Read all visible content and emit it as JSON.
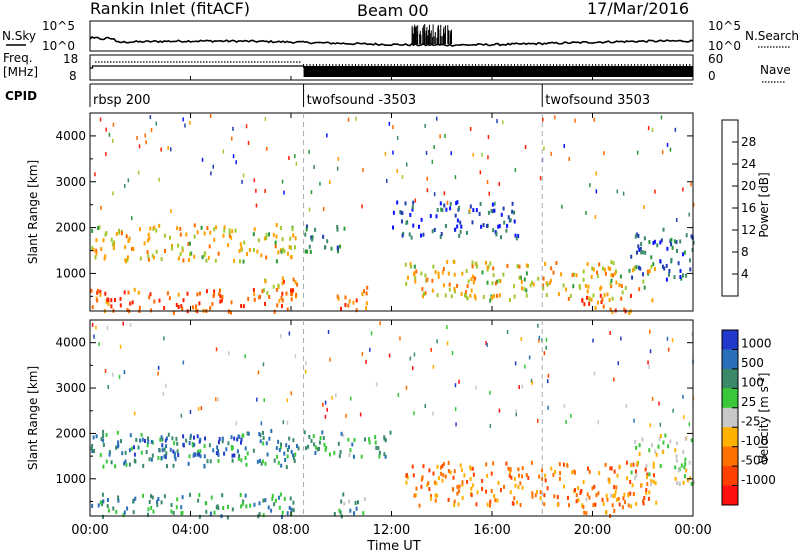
{
  "header": {
    "station": "Rankin Inlet (fitACF)",
    "beam": "Beam 00",
    "date": "17/Mar/2016"
  },
  "top_panel": {
    "left_label": "N.Sky",
    "right_label": "N.Search",
    "left_ticks": [
      "10^5",
      "10^0"
    ],
    "right_ticks": [
      "10^5",
      "10^0"
    ]
  },
  "freq_panel": {
    "left_label_1": "Freq.",
    "left_label_2": "[MHz]",
    "right_label": "Nave",
    "left_ticks": [
      "18",
      "8"
    ],
    "right_ticks": [
      "60",
      "0"
    ]
  },
  "cpid": {
    "label": "CPID",
    "segments": [
      {
        "name": "rbsp 200",
        "start_hour": 0.0
      },
      {
        "name": "twofsound -3503",
        "start_hour": 8.5
      },
      {
        "name": "twofsound 3503",
        "start_hour": 18.0
      }
    ]
  },
  "x_axis": {
    "label": "Time UT",
    "ticks": [
      "00:00",
      "04:00",
      "08:00",
      "12:00",
      "16:00",
      "20:00",
      "00:00"
    ],
    "tick_hours": [
      0,
      4,
      8,
      12,
      16,
      20,
      24
    ],
    "range_hours": [
      0,
      24
    ]
  },
  "chart_data": [
    {
      "type": "heatmap",
      "title": "",
      "xlabel": "Time UT",
      "ylabel": "Slant Range [km]",
      "xlim_hours": [
        0,
        24
      ],
      "ylim_km": [
        180,
        4500
      ],
      "ytick_labels": [
        "1000",
        "2000",
        "3000",
        "4000"
      ],
      "ytick_values": [
        1000,
        2000,
        3000,
        4000
      ],
      "colorbar": {
        "label": "Power [dB]",
        "labels": [
          "4",
          "8",
          "12",
          "16",
          "20",
          "24",
          "28"
        ],
        "colors": [
          "#0a14ff",
          "#2040b0",
          "#3a8a6a",
          "#2a9a3a",
          "#a0c830",
          "#ffa000",
          "#ff6a00",
          "#ff2000"
        ]
      },
      "scatter_regions": [
        {
          "t": [
            0.0,
            8.3
          ],
          "r": [
            1300,
            2100
          ],
          "level": 4.6
        },
        {
          "t": [
            0.0,
            8.3
          ],
          "r": [
            180,
            700
          ],
          "level": 6.2
        },
        {
          "t": [
            6.5,
            8.3
          ],
          "r": [
            450,
            950
          ],
          "level": 5.5
        },
        {
          "t": [
            8.5,
            10.2
          ],
          "r": [
            1500,
            2100
          ],
          "level": 2.2
        },
        {
          "t": [
            9.7,
            11.0
          ],
          "r": [
            180,
            750
          ],
          "level": 5.8
        },
        {
          "t": [
            12.5,
            22.5
          ],
          "r": [
            450,
            1300
          ],
          "level": 4.6
        },
        {
          "t": [
            19.5,
            21.5
          ],
          "r": [
            180,
            600
          ],
          "level": 6.2
        },
        {
          "t": [
            21.5,
            24.0
          ],
          "r": [
            900,
            2000
          ],
          "level": 1.5
        },
        {
          "t": [
            12.0,
            17.0
          ],
          "r": [
            1800,
            2600
          ],
          "level": 1.0
        }
      ]
    },
    {
      "type": "heatmap",
      "title": "",
      "xlabel": "Time UT",
      "ylabel": "Slant Range [km]",
      "xlim_hours": [
        0,
        24
      ],
      "ylim_km": [
        180,
        4500
      ],
      "ytick_labels": [
        "1000",
        "2000",
        "3000",
        "4000"
      ],
      "ytick_values": [
        1000,
        2000,
        3000,
        4000
      ],
      "colorbar": {
        "label": "Velocity [m s^-1]",
        "labels": [
          "1000",
          "500",
          "100",
          "25",
          "-25",
          "-100",
          "-500",
          "-1000"
        ],
        "colors": [
          "#2238c8",
          "#2a70b8",
          "#3a8a6a",
          "#3ac83a",
          "#c8c8c8",
          "#ffb000",
          "#ff7000",
          "#ff4000",
          "#ff1010"
        ]
      },
      "scatter_regions": [
        {
          "t": [
            0.0,
            8.3
          ],
          "r": [
            1300,
            2100
          ],
          "level": 2.0
        },
        {
          "t": [
            1.5,
            6.0
          ],
          "r": [
            1500,
            2000
          ],
          "level": 0.5
        },
        {
          "t": [
            0.0,
            8.3
          ],
          "r": [
            180,
            700
          ],
          "level": 2.2
        },
        {
          "t": [
            8.5,
            12.0
          ],
          "r": [
            1500,
            2100
          ],
          "level": 2.4
        },
        {
          "t": [
            9.7,
            11.0
          ],
          "r": [
            180,
            700
          ],
          "level": 2.6
        },
        {
          "t": [
            12.5,
            22.5
          ],
          "r": [
            450,
            1400
          ],
          "level": 6.0
        },
        {
          "t": [
            19.5,
            21.5
          ],
          "r": [
            180,
            700
          ],
          "level": 5.5
        },
        {
          "t": [
            21.5,
            24.0
          ],
          "r": [
            900,
            2000
          ],
          "level": 4.0
        }
      ]
    }
  ]
}
